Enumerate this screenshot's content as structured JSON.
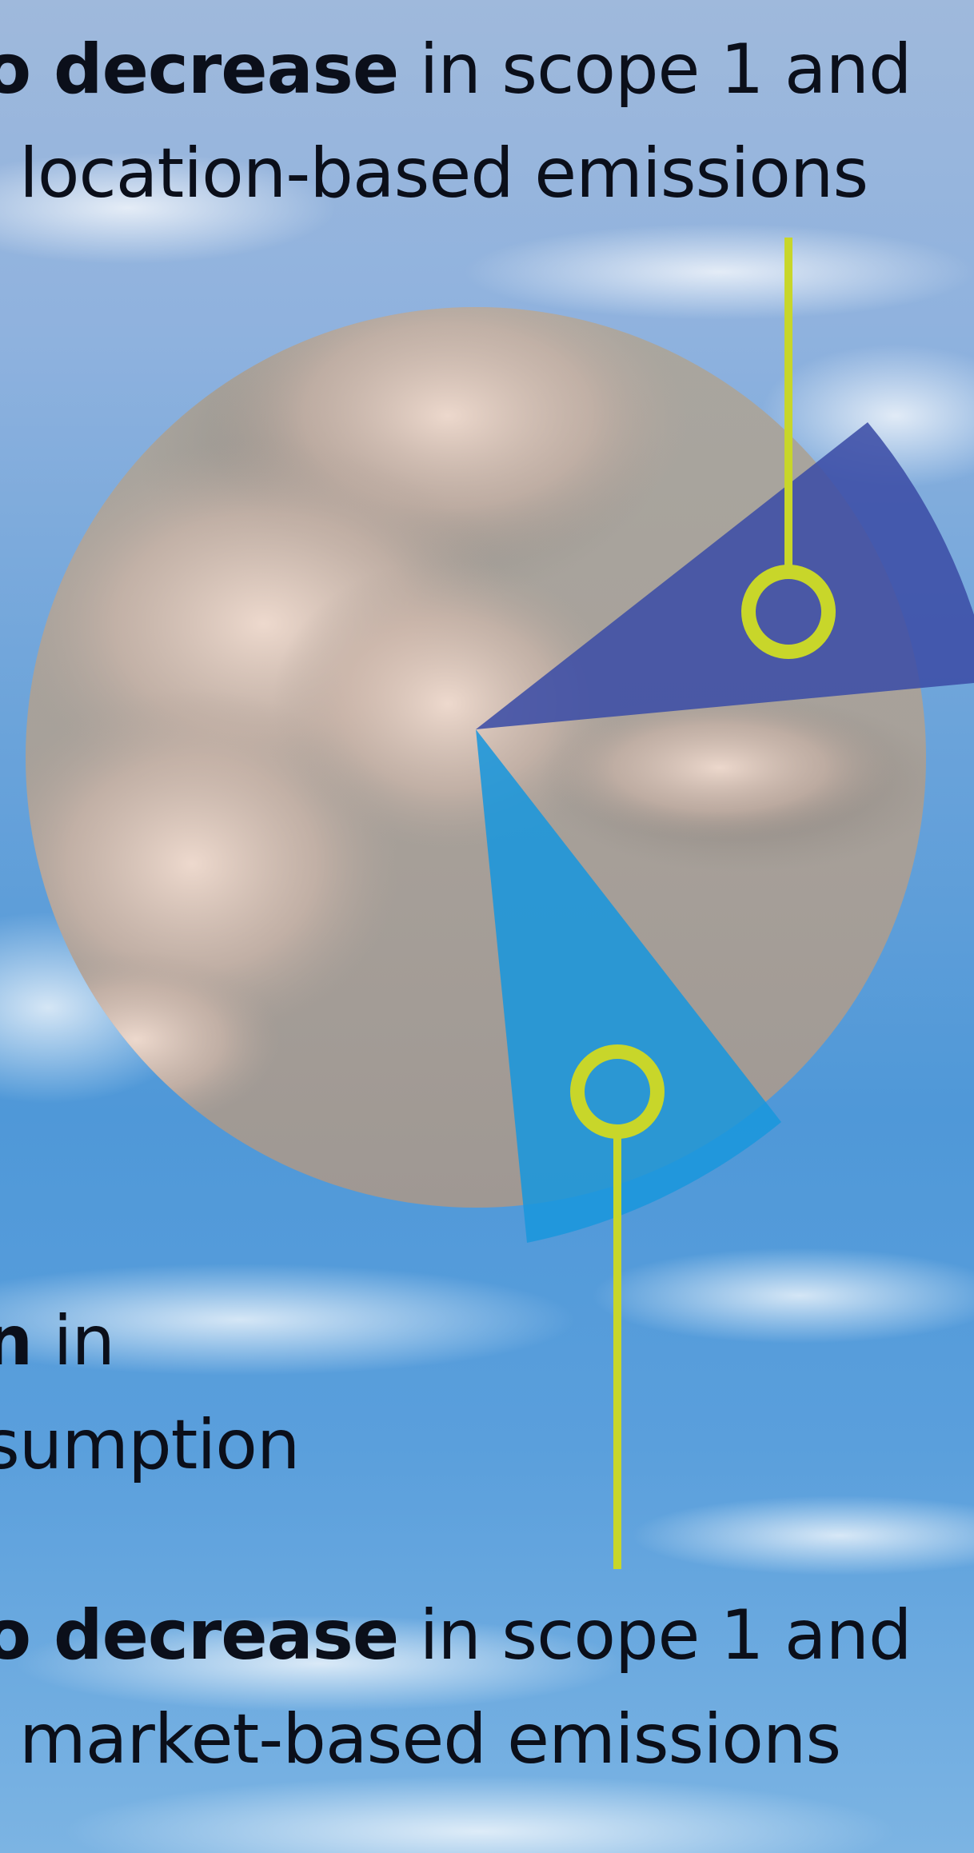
{
  "top_stat": {
    "line1_bold": "o decrease",
    "line1_rest": " in scope 1 and",
    "line2": "location-based emissions"
  },
  "middle_stat": {
    "line1_bold": "n",
    "line1_rest": " in",
    "line2": "sumption"
  },
  "bottom_stat": {
    "line1_bold": "o decrease",
    "line1_rest": " in scope 1 and",
    "line2": "market-based emissions"
  },
  "colors": {
    "accent_lime": "#c8d62a",
    "segment_dark_blue": "#3c4da6",
    "segment_light_blue": "#1a96dc",
    "circle_base": "#a39e98"
  },
  "icons": {
    "callout_marker": "ring-marker-icon"
  }
}
